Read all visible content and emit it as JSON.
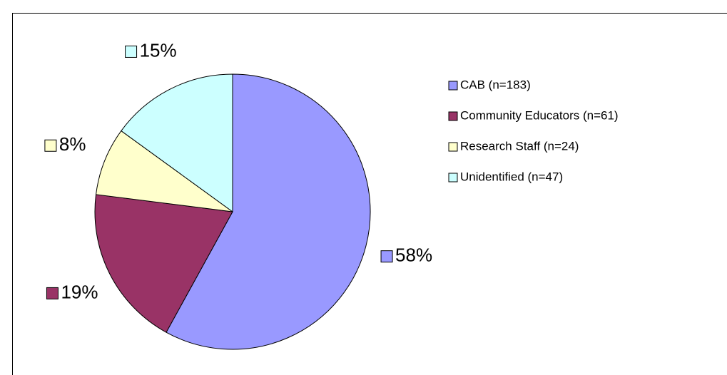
{
  "chart_data": {
    "type": "pie",
    "categories": [
      "CAB (n=183)",
      "Community Educators (n=61)",
      "Research Staff (n=24)",
      "Unidentified (n=47)"
    ],
    "values": [
      58,
      19,
      8,
      15
    ],
    "value_labels": [
      "58%",
      "19%",
      "8%",
      "15%"
    ],
    "colors": [
      "#9999ff",
      "#993366",
      "#ffffcc",
      "#ccffff"
    ],
    "legend": "right"
  }
}
